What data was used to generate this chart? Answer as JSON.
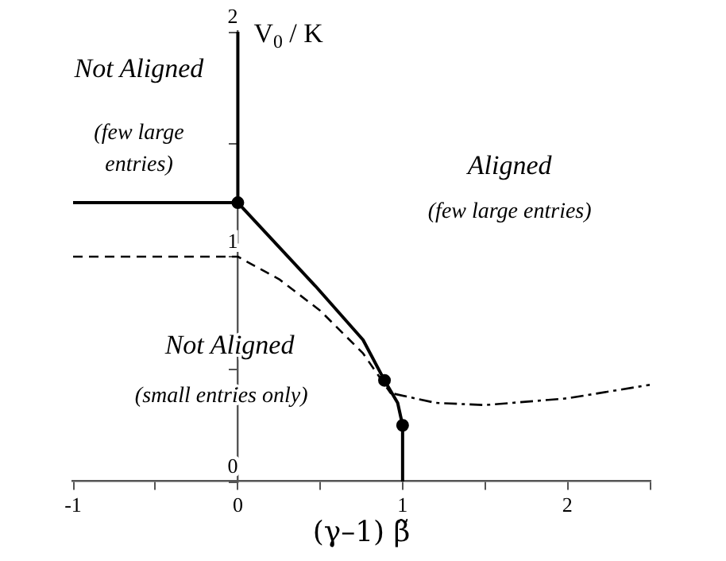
{
  "chart_data": {
    "type": "line",
    "xlabel": "(γ–1) β̃",
    "ylabel": "V$_{0}$ / K",
    "xlim": [
      -1,
      2.5
    ],
    "ylim": [
      0,
      2
    ],
    "xticks": [
      -1,
      {
        "value": -0.5,
        "label": null
      },
      0,
      {
        "value": 0.5,
        "label": null
      },
      1,
      {
        "value": 1.5,
        "label": null
      },
      2,
      {
        "value": 2.5,
        "label": null
      }
    ],
    "yticks": [
      0,
      {
        "value": 0.5,
        "label": null
      },
      1,
      {
        "value": 1.5,
        "label": null
      },
      2
    ],
    "grid": false,
    "legend": false,
    "marker": "none",
    "series": [
      {
        "color": "#000000",
        "line_style": "solid",
        "x": [
          -1,
          0
        ],
        "values": [
          1.24,
          1.24
        ]
      },
      {
        "color": "#000000",
        "line_style": "solid",
        "x": [
          0,
          0
        ],
        "values": [
          1.24,
          2
        ]
      },
      {
        "color": "#000000",
        "line_style": "solid",
        "x": [
          0,
          0.47,
          0.76,
          0.89,
          0.97,
          1,
          1
        ],
        "values": [
          1.24,
          0.87,
          0.63,
          0.45,
          0.35,
          0.25,
          0
        ]
      },
      {
        "color": "#000000",
        "line_style": "dashed",
        "x": [
          -1,
          0,
          0.25,
          0.5,
          0.76,
          0.93
        ],
        "values": [
          1,
          1,
          0.9,
          0.76,
          0.57,
          0.39
        ]
      },
      {
        "color": "#000000",
        "line_style": "dashdot",
        "x": [
          0.95,
          1.2,
          1.5,
          2,
          2.5
        ],
        "values": [
          0.39,
          0.35,
          0.34,
          0.37,
          0.43
        ]
      },
      {
        "type": "scatter",
        "color": "#000000",
        "marker": "circle",
        "x": [
          0,
          0.89,
          1
        ],
        "values": [
          1.24,
          0.45,
          0.25
        ]
      }
    ],
    "annotations": [
      "Not Aligned",
      "(few large entries)",
      "Aligned",
      "(few large entries)",
      "Not Aligned",
      "(small entries only)"
    ]
  }
}
